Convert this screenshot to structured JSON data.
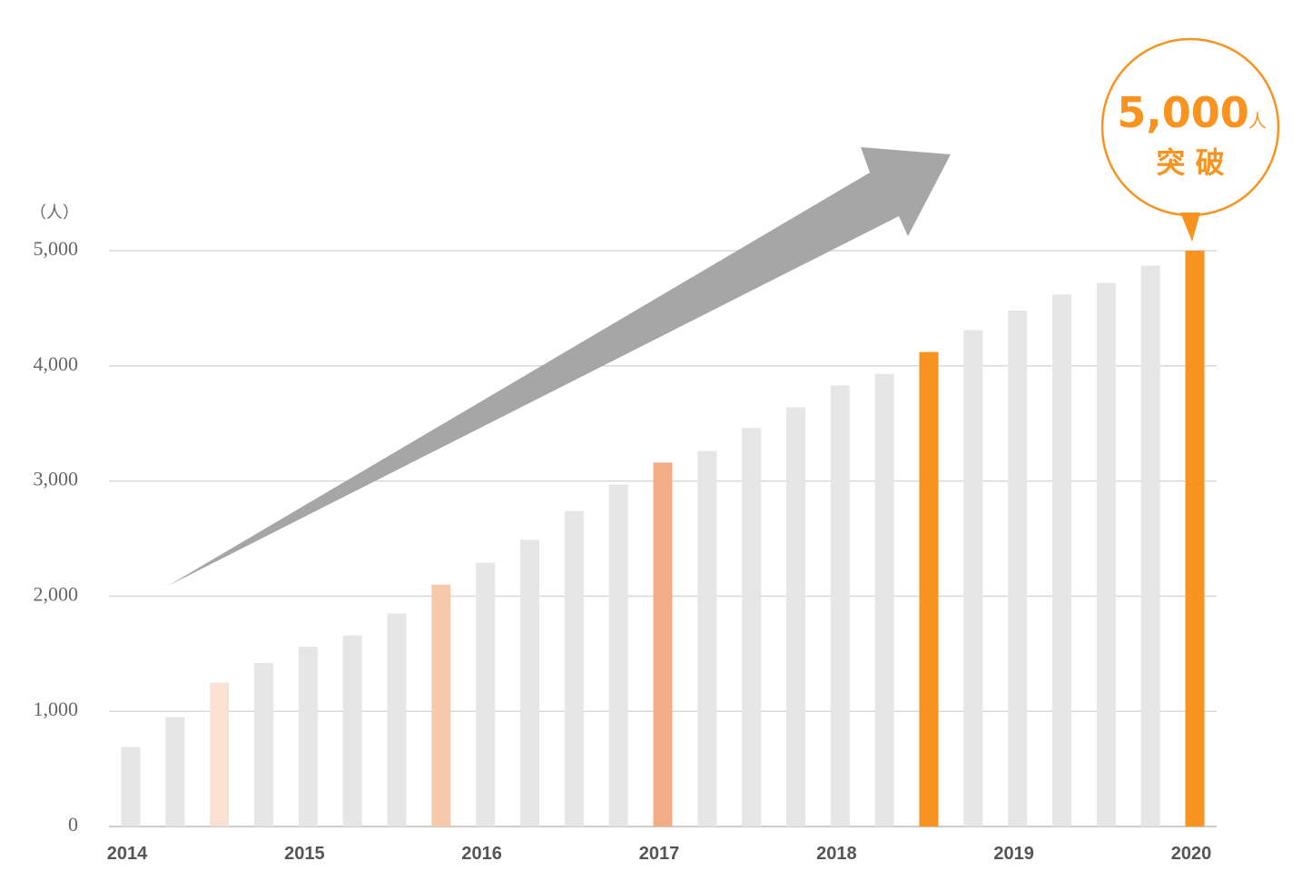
{
  "chart_data": {
    "type": "bar",
    "y_unit": "（人）",
    "categories": [
      "2014",
      null,
      null,
      null,
      "2015",
      null,
      null,
      null,
      "2016",
      null,
      null,
      null,
      "2017",
      null,
      null,
      null,
      "2018",
      null,
      null,
      null,
      "2019",
      null,
      null,
      null,
      "2020"
    ],
    "values": [
      690,
      950,
      1250,
      1420,
      1560,
      1660,
      1850,
      2100,
      2290,
      2490,
      2740,
      2970,
      3160,
      3260,
      3460,
      3640,
      3830,
      3930,
      4120,
      4310,
      4480,
      4620,
      4720,
      4870,
      5000
    ],
    "colors": [
      "#e6e6e6",
      "#e6e6e6",
      "#fbe0d4",
      "#e6e6e6",
      "#e6e6e6",
      "#e6e6e6",
      "#e6e6e6",
      "#f7c9ab",
      "#e6e6e6",
      "#e6e6e6",
      "#e6e6e6",
      "#e6e6e6",
      "#f2ad85",
      "#e6e6e6",
      "#e6e6e6",
      "#e6e6e6",
      "#e6e6e6",
      "#e6e6e6",
      "#f7931e",
      "#e6e6e6",
      "#e6e6e6",
      "#e6e6e6",
      "#e6e6e6",
      "#e6e6e6",
      "#f7931e"
    ],
    "ylim": [
      0,
      5000
    ],
    "yticks": [
      0,
      {
        "value": 1000,
        "label": "1,000"
      },
      {
        "value": 2000,
        "label": "2,000"
      },
      {
        "value": 3000,
        "label": "3,000"
      },
      {
        "value": 4000,
        "label": "4,000"
      },
      {
        "value": 5000,
        "label": "5,000"
      }
    ],
    "grid": true,
    "annotation": {
      "value": "5,000",
      "unit": "人",
      "text": "突 破"
    }
  }
}
